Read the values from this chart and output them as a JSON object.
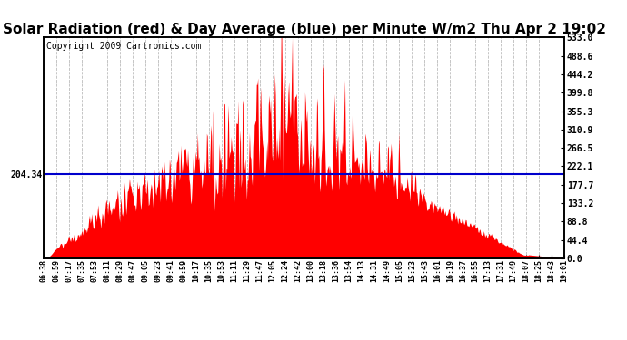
{
  "title": "Solar Radiation (red) & Day Average (blue) per Minute W/m2 Thu Apr 2 19:02",
  "copyright": "Copyright 2009 Cartronics.com",
  "day_average": 204.34,
  "y_max": 533.0,
  "y_min": 0.0,
  "y_ticks": [
    0.0,
    44.4,
    88.8,
    133.2,
    177.7,
    222.1,
    266.5,
    310.9,
    355.3,
    399.8,
    444.2,
    488.6,
    533.0
  ],
  "fill_color": "#FF0000",
  "line_color": "#0000CC",
  "background_color": "#FFFFFF",
  "grid_color": "#AAAAAA",
  "title_fontsize": 11,
  "copyright_fontsize": 7,
  "x_tick_labels": [
    "06:38",
    "06:59",
    "07:17",
    "07:35",
    "07:53",
    "08:11",
    "08:29",
    "08:47",
    "09:05",
    "09:23",
    "09:41",
    "09:59",
    "10:17",
    "10:35",
    "10:53",
    "11:11",
    "11:29",
    "11:47",
    "12:05",
    "12:24",
    "12:42",
    "13:00",
    "13:18",
    "13:36",
    "13:54",
    "14:13",
    "14:31",
    "14:49",
    "15:05",
    "15:23",
    "15:43",
    "16:01",
    "16:19",
    "16:37",
    "16:55",
    "17:13",
    "17:31",
    "17:49",
    "18:07",
    "18:25",
    "18:43",
    "19:01"
  ],
  "n_points": 743
}
